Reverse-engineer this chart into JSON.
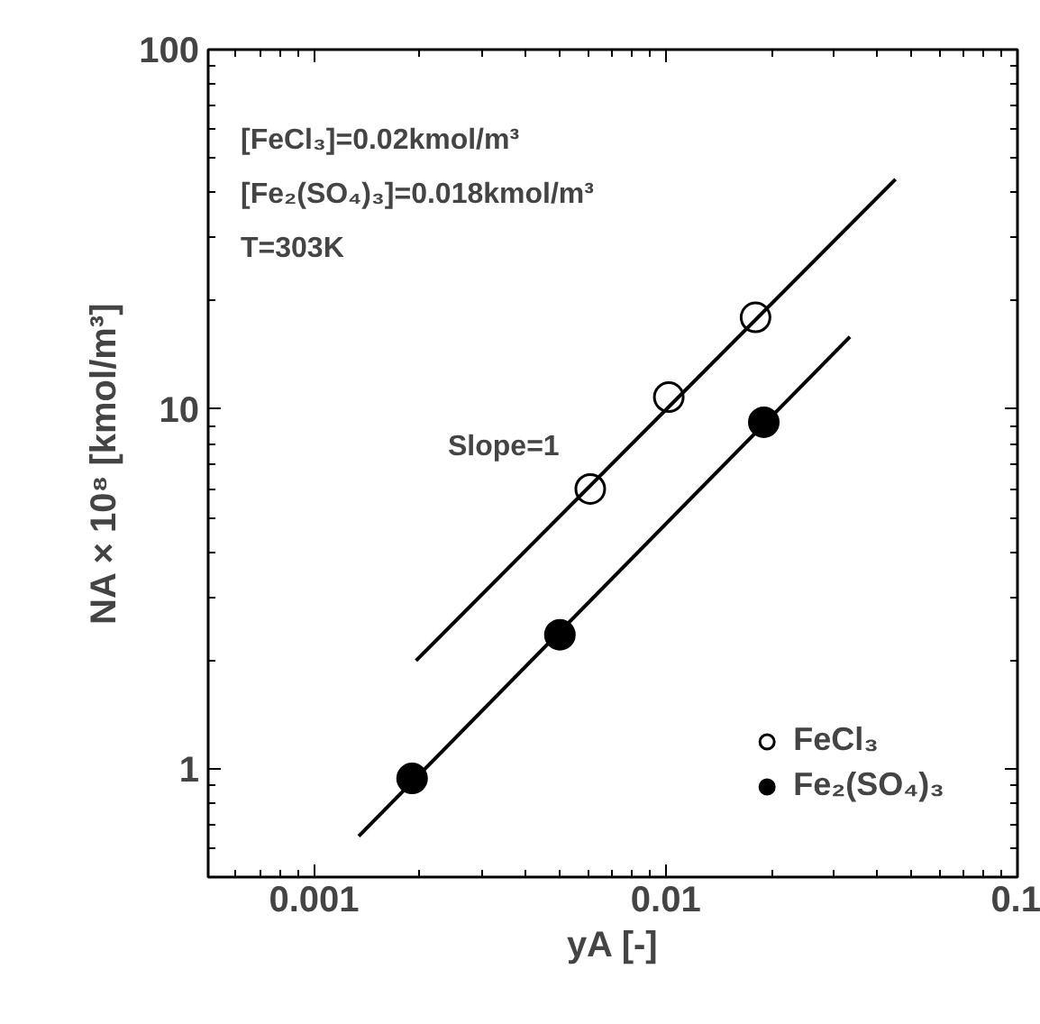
{
  "chart_data": {
    "type": "scatter",
    "log": "xy",
    "xlabel": "yA [-]",
    "ylabel": "NA × 10⁸ [kmol/m³]",
    "xlim": [
      0.0005,
      0.1
    ],
    "ylim": [
      0.5,
      100
    ],
    "xticks": [
      0.001,
      0.01,
      0.1
    ],
    "yticks": [
      1,
      10,
      100
    ],
    "grid": false,
    "legend": "bottom right",
    "marker": "circle",
    "annotations": [
      "[FeCl₃]=0.02kmol/m³",
      "[Fe₂(SO₄)₃]=0.018kmol/m³",
      "T=303K",
      "Slope=1"
    ],
    "series": [
      {
        "name": "FeCl₃",
        "color": "#ffffff",
        "x": [
          0.0061,
          0.0102,
          0.018
        ],
        "values": [
          6.0,
          10.8,
          18
        ]
      },
      {
        "name": "Fe₂(SO₄)₃",
        "color": "#000000",
        "x": [
          0.0019,
          0.005,
          0.019
        ],
        "values": [
          0.94,
          2.36,
          9.2
        ]
      },
      {
        "type": "line",
        "marker": "none",
        "color": "#000000",
        "x": [
          0.00195,
          0.045
        ],
        "values": [
          2.0,
          43.6
        ]
      },
      {
        "type": "line",
        "marker": "none",
        "color": "#000000",
        "x": [
          0.00134,
          0.0334
        ],
        "values": [
          0.65,
          15.9
        ]
      }
    ]
  }
}
